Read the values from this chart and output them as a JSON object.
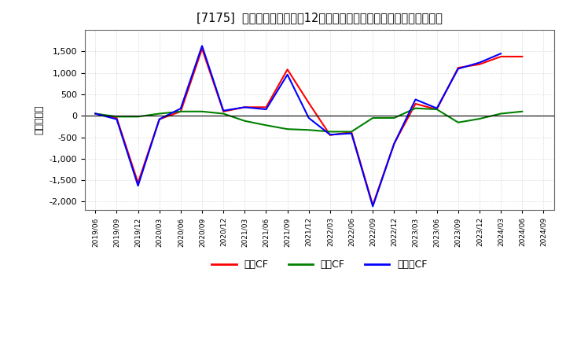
{
  "title": "[7175]  キャッシュフローの12か月移動合計の対前年同期増減額の推移",
  "ylabel": "（百万円）",
  "x_labels": [
    "2019/06",
    "2019/09",
    "2019/12",
    "2020/03",
    "2020/06",
    "2020/09",
    "2020/12",
    "2021/03",
    "2021/06",
    "2021/09",
    "2021/12",
    "2022/03",
    "2022/06",
    "2022/09",
    "2022/12",
    "2023/03",
    "2023/06",
    "2023/09",
    "2023/12",
    "2024/03",
    "2024/06",
    "2024/09"
  ],
  "series": {
    "営業CF": {
      "color": "#ff0000",
      "values": [
        50,
        -50,
        -1560,
        -80,
        100,
        1560,
        100,
        200,
        200,
        1080,
        300,
        -450,
        -380,
        -2080,
        -650,
        280,
        150,
        1120,
        1200,
        1380,
        1380,
        null
      ]
    },
    "投賃CF": {
      "color": "#008000",
      "values": [
        50,
        -20,
        -20,
        50,
        100,
        100,
        50,
        -120,
        -220,
        -310,
        -330,
        -370,
        -370,
        -50,
        -50,
        175,
        150,
        -155,
        -70,
        50,
        100,
        null
      ]
    },
    "フリーCF": {
      "color": "#0000ff",
      "values": [
        50,
        -80,
        -1630,
        -80,
        170,
        1630,
        120,
        200,
        150,
        960,
        -50,
        -440,
        -410,
        -2110,
        -650,
        380,
        175,
        1095,
        1240,
        1450,
        null,
        null
      ]
    }
  },
  "ylim": [
    -2200,
    2000
  ],
  "yticks": [
    -2000,
    -1500,
    -1000,
    -500,
    0,
    500,
    1000,
    1500
  ],
  "background_color": "#ffffff",
  "grid_color": "#aaaaaa",
  "legend_labels": [
    "営業CF",
    "投賃CF",
    "フリーCF"
  ],
  "legend_colors": [
    "#ff0000",
    "#008000",
    "#0000ff"
  ]
}
